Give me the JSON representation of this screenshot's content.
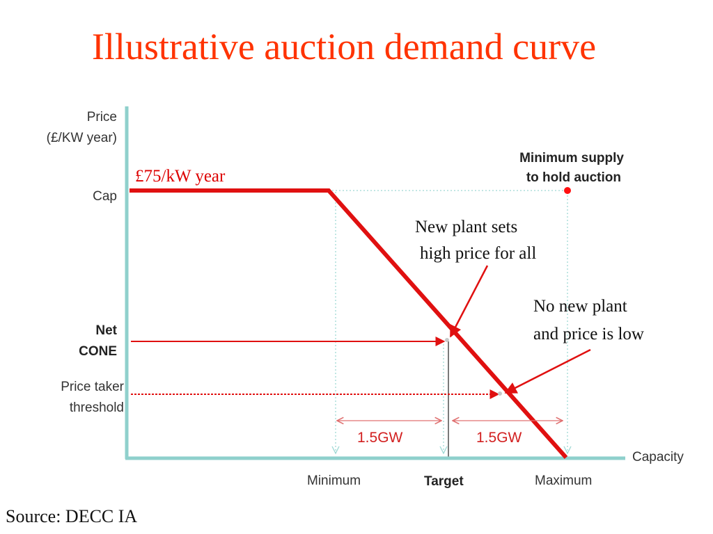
{
  "slide": {
    "title": "Illustrative auction demand curve",
    "source": "Source: DECC IA"
  },
  "axes": {
    "y_label_line1": "Price",
    "y_label_line2": "(£/KW year)",
    "x_label": "Capacity",
    "y_ticks": [
      "Cap",
      "Net",
      "CONE",
      "Price taker",
      "threshold"
    ],
    "x_ticks": [
      "Minimum",
      "Target",
      "Maximum"
    ]
  },
  "annotations": {
    "cap_value": "£75/kW year",
    "min_supply_line1": "Minimum supply",
    "min_supply_line2": "to hold auction",
    "new_plant_line1": "New plant sets",
    "new_plant_line2": "high price for all",
    "no_new_plant_line1": "No new plant",
    "no_new_plant_line2": "and price is low",
    "gap_left": "1.5GW",
    "gap_right": "1.5GW"
  },
  "colors": {
    "title": "#ff3300",
    "curve": "#e01010",
    "axis": "#8fd0cc",
    "guide": "#9ed8d4"
  }
}
